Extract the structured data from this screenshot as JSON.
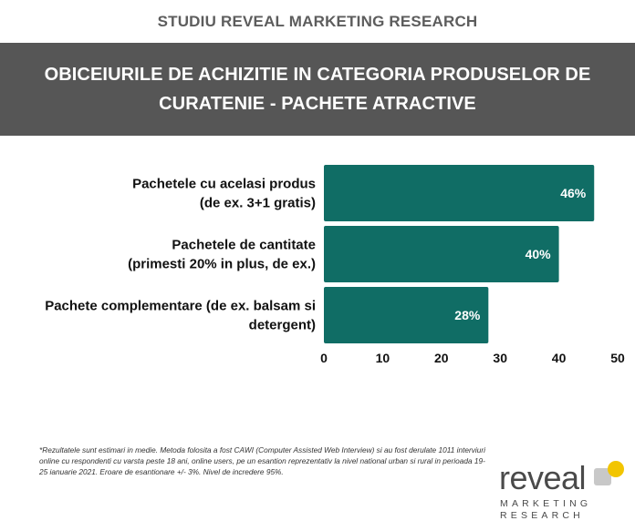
{
  "header": {
    "kicker": "STUDIU REVEAL MARKETING RESEARCH",
    "title_line1": "OBICEIURILE DE ACHIZITIE IN CATEGORIA PRODUSELOR DE",
    "title_line2": "CURATENIE - PACHETE ATRACTIVE"
  },
  "chart_data": {
    "type": "bar",
    "orientation": "horizontal",
    "categories": [
      [
        "Pachetele cu acelasi produs",
        "(de ex. 3+1 gratis)"
      ],
      [
        "Pachetele de cantitate",
        "(primesti 20% in plus, de ex.)"
      ],
      [
        "Pachete complementare (de ex. balsam si",
        "detergent)"
      ]
    ],
    "values": [
      46,
      40,
      28
    ],
    "value_labels": [
      "46%",
      "40%",
      "28%"
    ],
    "xlim": [
      0,
      50
    ],
    "xticks": [
      0,
      10,
      20,
      30,
      40,
      50
    ],
    "grid": false,
    "bar_color": "#106d65"
  },
  "footnote": "*Rezultatele sunt estimari in medie. Metoda folosita a fost CAWI (Computer Assisted Web Interview) si au fost derulate 1011 interviuri online cu respondenti cu varsta peste 18 ani, online users, pe un esantion reprezentativ la nivel national urban si rural in perioada 19-25 ianuarie 2021. Eroare de esantionare +/- 3%. Nivel de incredere 95%.",
  "logo": {
    "word": "reveal",
    "sub1": "MARKETING",
    "sub2": "RESEARCH",
    "accent_color": "#f2c500"
  }
}
